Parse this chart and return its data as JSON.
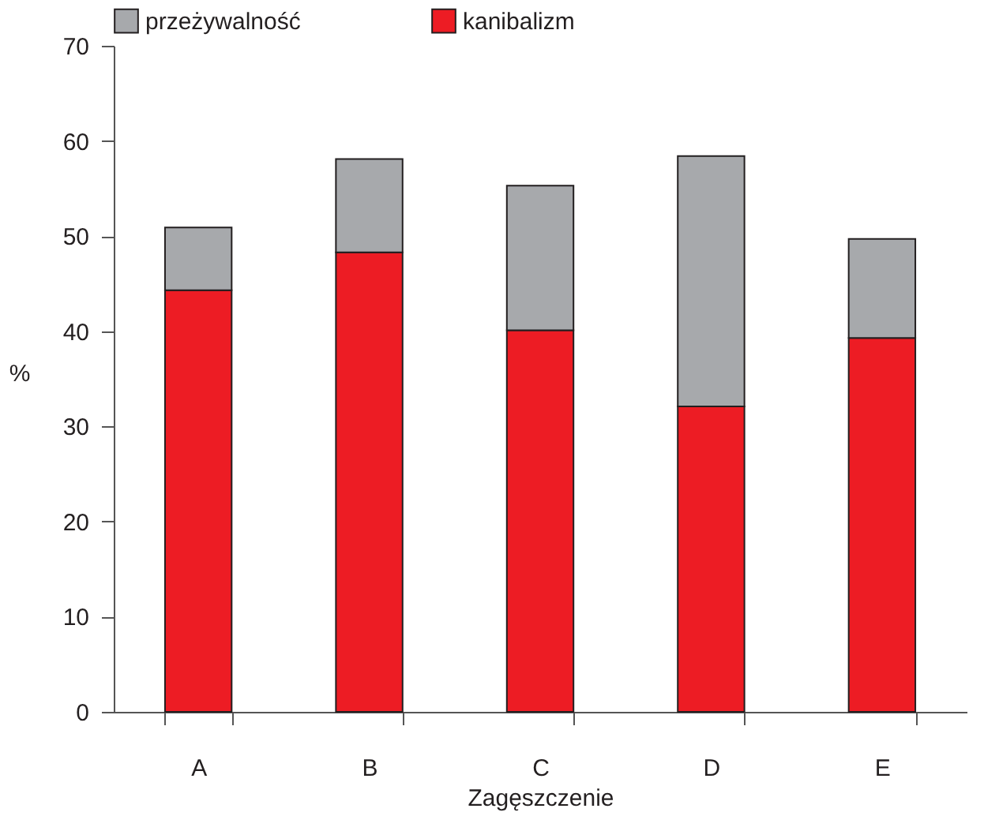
{
  "chart_data": {
    "type": "bar",
    "stacked": true,
    "xlabel": "Zagęszczenie",
    "ylabel": "%",
    "categories": [
      "A",
      "B",
      "C",
      "D",
      "E"
    ],
    "series": [
      {
        "name": "kanibalizm",
        "color": "#ed1c24",
        "values": [
          44.3,
          48.3,
          40.1,
          32.1,
          39.3
        ]
      },
      {
        "name": "przeżywalność",
        "color": "#a7a9ac",
        "values": [
          6.6,
          9.8,
          15.2,
          26.3,
          10.4
        ]
      }
    ],
    "ylim": [
      0,
      70
    ],
    "yticks": [
      0,
      10,
      20,
      30,
      40,
      50,
      60,
      70
    ],
    "grid": false,
    "legend": "top"
  }
}
